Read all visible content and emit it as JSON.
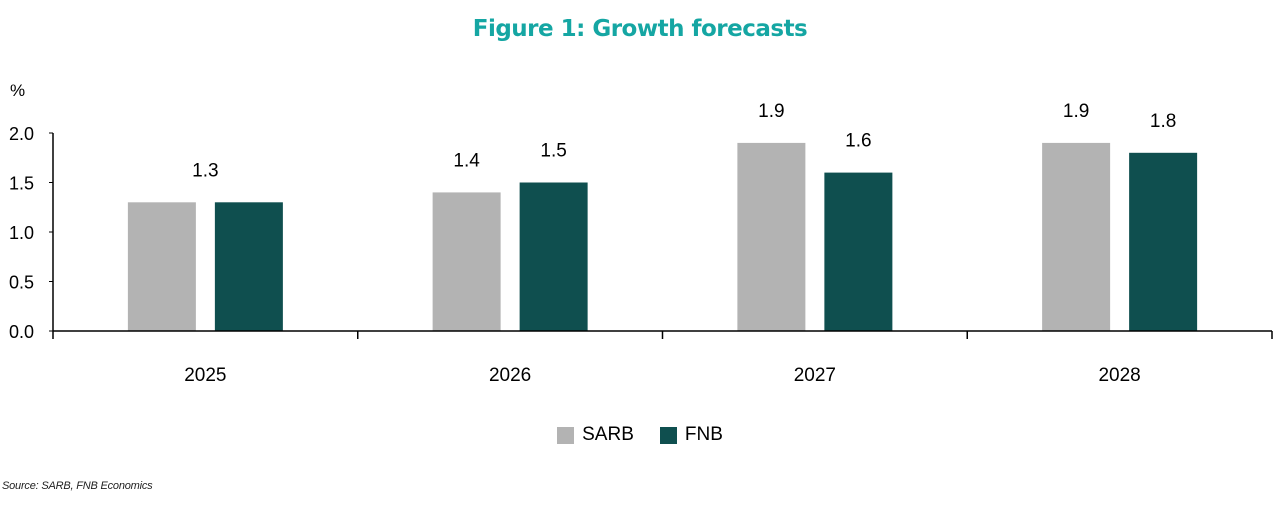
{
  "chart_data": {
    "type": "bar",
    "title": "Figure 1: Growth forecasts",
    "ylabel": "%",
    "xlabel": "",
    "categories": [
      "2025",
      "2026",
      "2027",
      "2028"
    ],
    "series": [
      {
        "name": "SARB",
        "values": [
          1.3,
          1.4,
          1.9,
          1.9
        ],
        "color": "#b3b3b3"
      },
      {
        "name": "FNB",
        "values": [
          1.3,
          1.5,
          1.6,
          1.8
        ],
        "color": "#0f4f4f"
      }
    ],
    "data_labels": [
      {
        "category": "2025",
        "text": "1.3"
      },
      {
        "category": "2026",
        "series": "SARB",
        "text": "1.4"
      },
      {
        "category": "2026",
        "series": "FNB",
        "text": "1.5"
      },
      {
        "category": "2027",
        "series": "SARB",
        "text": "1.9"
      },
      {
        "category": "2027",
        "series": "FNB",
        "text": "1.6"
      },
      {
        "category": "2028",
        "series": "SARB",
        "text": "1.9"
      },
      {
        "category": "2028",
        "series": "FNB",
        "text": "1.8"
      }
    ],
    "yticks": [
      "0.0",
      "0.5",
      "1.0",
      "1.5",
      "2.0"
    ],
    "ylim": [
      0,
      2.0
    ],
    "grid": false,
    "legend_position": "bottom-center"
  },
  "legend": {
    "sarb_label": "SARB",
    "fnb_label": "FNB"
  },
  "source": "Source: SARB, FNB Economics",
  "colors": {
    "title": "#15a6a3",
    "sarb": "#b3b3b3",
    "fnb": "#0f4f4f"
  }
}
